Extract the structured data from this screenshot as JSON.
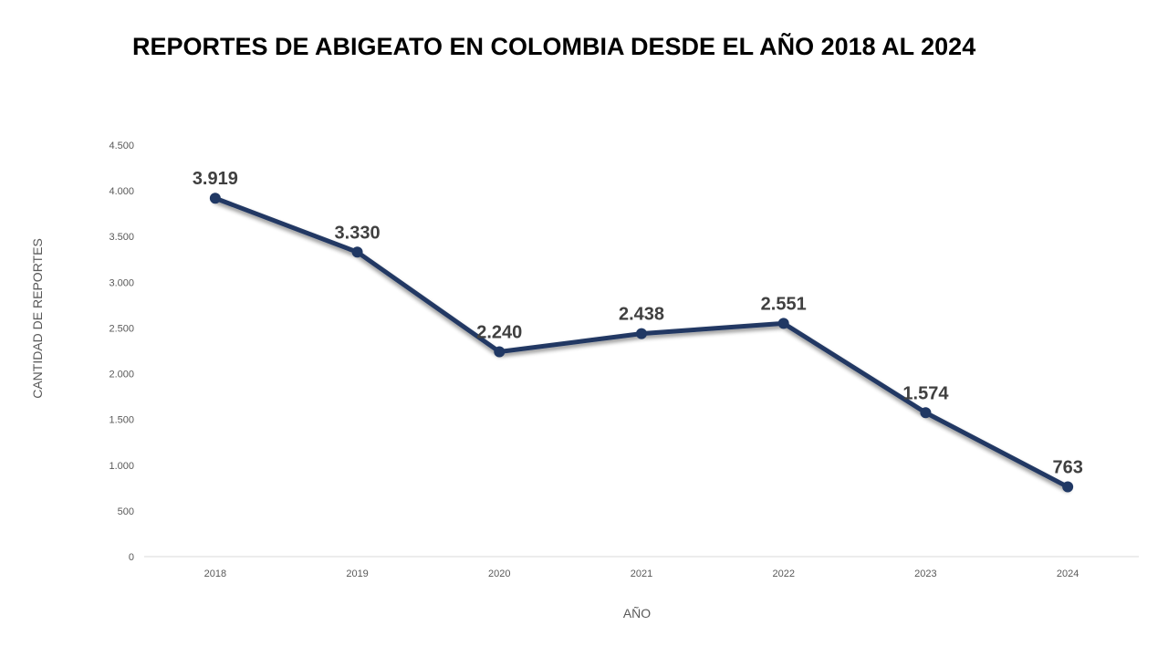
{
  "chart_data": {
    "type": "line",
    "title": "REPORTES DE ABIGEATO EN COLOMBIA DESDE EL AÑO 2018 AL 2024",
    "xlabel": "AÑO",
    "ylabel": "CANTIDAD DE REPORTES",
    "categories": [
      "2018",
      "2019",
      "2020",
      "2021",
      "2022",
      "2023",
      "2024"
    ],
    "series": [
      {
        "values": [
          3919,
          3330,
          2240,
          2438,
          2551,
          1574,
          763
        ],
        "data_labels": [
          "3.919",
          "3.330",
          "2.240",
          "2.438",
          "2.551",
          "1.574",
          "763"
        ]
      }
    ],
    "ylim": [
      0,
      4500
    ],
    "yticks": [
      0,
      500,
      1000,
      1500,
      2000,
      2500,
      3000,
      3500,
      4000,
      4500
    ],
    "ytick_labels": [
      "0",
      "500",
      "1.000",
      "1.500",
      "2.000",
      "2.500",
      "3.000",
      "3.500",
      "4.000",
      "4.500"
    ],
    "grid": false,
    "legend": "none",
    "colors": {
      "line": "#203864",
      "text": "#404040",
      "axis": "#d9d9d9",
      "tick_text": "#595959"
    }
  }
}
